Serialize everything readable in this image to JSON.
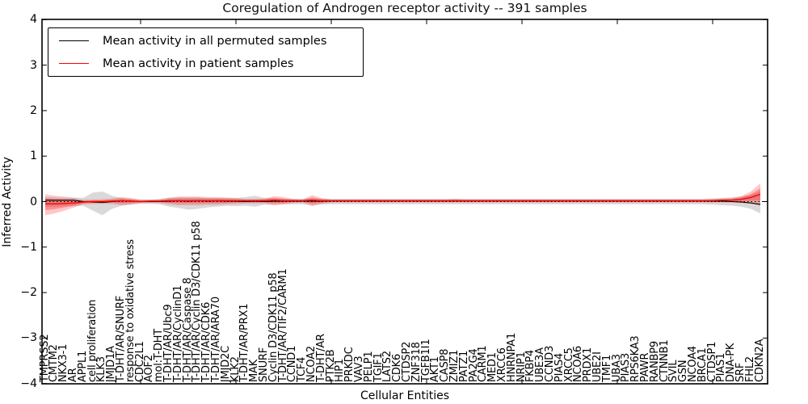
{
  "chart_data": {
    "type": "line",
    "title": "Coregulation of Androgen receptor activity -- 391 samples",
    "xlabel": "Cellular Entities",
    "ylabel": "Inferred Activity",
    "ylim": [
      -4,
      4
    ],
    "yticks": [
      4,
      3,
      2,
      1,
      0,
      -1,
      -2,
      -3,
      -4
    ],
    "xtick_positions": [
      10,
      20,
      30,
      40,
      50,
      60,
      70
    ],
    "grid": false,
    "legend_position": "upper left",
    "zero_line": {
      "value": 0,
      "style": "dotted",
      "color": "#000000"
    },
    "categories": [
      "TMPRSS2",
      "CMTM2",
      "NKX3-1",
      "AR",
      "APPL1",
      "cell proliferation",
      "KLK3",
      "JMJD1A",
      "T-DHT/AR/SNURF",
      "response to oxidative stress",
      "CDC2L1",
      "AOF2",
      "mol:T-DHT",
      "T-DHT/AR/Ubc9",
      "T-DHT/AR/CyclinD1",
      "T-DHT/AR/Caspase 8",
      "T-DHT/AR/Cyclin D3/CDK11 p58",
      "T-DHT/AR/CDK6",
      "T-DHT/AR/ARA70",
      "JMJD2C",
      "KLK2",
      "T-DHT/AR/PRX1",
      "MAK",
      "SNURF",
      "Cyclin D3/CDK11 p58",
      "T-DHT/AR/TIF2/CARM1",
      "CCND1",
      "TCF4",
      "NCOA2",
      "T-DHT/AR",
      "PTK2B",
      "HIP1",
      "PRKDC",
      "VAV3",
      "PELP1",
      "TGIF1",
      "LATS2",
      "CDK6",
      "CTDSP2",
      "ZNF318",
      "TGFB1I1",
      "AKT1",
      "CASP8",
      "ZMIZ1",
      "PATZ1",
      "PA2G4",
      "CARM1",
      "MED1",
      "XRCC6",
      "HNRNPA1",
      "NRIP1",
      "FKBP4",
      "UBE3A",
      "CCND3",
      "PIAS4",
      "XRCC5",
      "NCOA6",
      "PRDX1",
      "UBE2I",
      "TMF1",
      "UBA3",
      "PIAS3",
      "RPS6KA3",
      "PAWR",
      "RANBP9",
      "CTNNB1",
      "SVIL",
      "GSN",
      "NCOA4",
      "BRCA1",
      "CTDSP1",
      "PIAS1",
      "DNA-PK",
      "SRF",
      "FHL2",
      "CDKN2A"
    ],
    "series": [
      {
        "name": "Mean activity in all permuted samples",
        "color": "#000000",
        "style": "solid",
        "values": [
          0.03,
          0.03,
          0.03,
          0.03,
          0.0,
          -0.01,
          -0.02,
          0.0,
          0.02,
          0.01,
          0.0,
          0.0,
          0.0,
          0.01,
          0.02,
          0.01,
          0.02,
          0.01,
          0.02,
          0.01,
          0.01,
          0.0,
          0.01,
          0.0,
          0.01,
          0.01,
          0.01,
          0.01,
          0.01,
          0.01,
          0.015,
          0.015,
          0.015,
          0.015,
          0.015,
          0.015,
          0.015,
          0.015,
          0.015,
          0.015,
          0.015,
          0.015,
          0.015,
          0.015,
          0.015,
          0.015,
          0.015,
          0.015,
          0.015,
          0.015,
          0.015,
          0.015,
          0.015,
          0.015,
          0.015,
          0.015,
          0.015,
          0.015,
          0.015,
          0.015,
          0.015,
          0.015,
          0.015,
          0.015,
          0.015,
          0.015,
          0.015,
          0.015,
          0.015,
          0.015,
          0.01,
          0.01,
          0.0,
          -0.01,
          -0.03,
          -0.06
        ]
      },
      {
        "name": "Mean activity in patient samples",
        "color": "#ff0000",
        "style": "solid",
        "values": [
          -0.05,
          -0.05,
          -0.04,
          -0.03,
          -0.01,
          0.0,
          0.0,
          0.01,
          0.02,
          0.01,
          0.0,
          0.01,
          0.01,
          0.02,
          0.02,
          0.02,
          0.02,
          0.02,
          0.02,
          0.02,
          0.02,
          0.02,
          0.02,
          0.02,
          0.03,
          0.02,
          0.02,
          0.02,
          0.03,
          0.02,
          0.02,
          0.02,
          0.02,
          0.02,
          0.02,
          0.02,
          0.02,
          0.02,
          0.02,
          0.02,
          0.02,
          0.02,
          0.02,
          0.02,
          0.02,
          0.02,
          0.02,
          0.02,
          0.02,
          0.02,
          0.02,
          0.02,
          0.02,
          0.02,
          0.02,
          0.02,
          0.02,
          0.02,
          0.02,
          0.02,
          0.02,
          0.02,
          0.02,
          0.02,
          0.02,
          0.02,
          0.02,
          0.02,
          0.02,
          0.02,
          0.02,
          0.03,
          0.03,
          0.05,
          0.09,
          0.16
        ]
      }
    ],
    "bands": [
      {
        "name": "permuted-samples-range",
        "color": "#000000",
        "opacity": 0.15,
        "upper": [
          0.1,
          0.09,
          0.08,
          0.09,
          0.08,
          0.2,
          0.22,
          0.13,
          0.08,
          0.06,
          0.05,
          0.05,
          0.06,
          0.08,
          0.09,
          0.09,
          0.09,
          0.08,
          0.08,
          0.08,
          0.08,
          0.1,
          0.13,
          0.08,
          0.07,
          0.06,
          0.06,
          0.06,
          0.07,
          0.06,
          0.06,
          0.06,
          0.06,
          0.06,
          0.06,
          0.06,
          0.06,
          0.06,
          0.06,
          0.06,
          0.06,
          0.06,
          0.06,
          0.06,
          0.06,
          0.06,
          0.06,
          0.06,
          0.06,
          0.06,
          0.06,
          0.06,
          0.06,
          0.06,
          0.06,
          0.06,
          0.06,
          0.06,
          0.06,
          0.06,
          0.06,
          0.06,
          0.06,
          0.06,
          0.06,
          0.06,
          0.06,
          0.06,
          0.06,
          0.06,
          0.07,
          0.08,
          0.09,
          0.11,
          0.15,
          0.23
        ],
        "lower": [
          -0.12,
          -0.11,
          -0.1,
          -0.1,
          -0.09,
          -0.2,
          -0.3,
          -0.16,
          -0.09,
          -0.07,
          -0.05,
          -0.05,
          -0.06,
          -0.11,
          -0.14,
          -0.18,
          -0.16,
          -0.13,
          -0.11,
          -0.09,
          -0.1,
          -0.09,
          -0.11,
          -0.07,
          -0.07,
          -0.06,
          -0.06,
          -0.06,
          -0.08,
          -0.06,
          -0.06,
          -0.06,
          -0.06,
          -0.06,
          -0.06,
          -0.06,
          -0.06,
          -0.06,
          -0.06,
          -0.06,
          -0.06,
          -0.06,
          -0.06,
          -0.06,
          -0.06,
          -0.06,
          -0.06,
          -0.06,
          -0.06,
          -0.06,
          -0.06,
          -0.06,
          -0.06,
          -0.06,
          -0.06,
          -0.06,
          -0.06,
          -0.06,
          -0.06,
          -0.06,
          -0.06,
          -0.06,
          -0.06,
          -0.06,
          -0.06,
          -0.06,
          -0.06,
          -0.06,
          -0.06,
          -0.06,
          -0.07,
          -0.08,
          -0.09,
          -0.11,
          -0.16,
          -0.26
        ]
      },
      {
        "name": "patient-samples-range-outer",
        "color": "#ff0000",
        "opacity": 0.22,
        "upper": [
          0.16,
          0.13,
          0.11,
          0.08,
          0.04,
          0.05,
          0.05,
          0.07,
          0.1,
          0.08,
          0.04,
          0.04,
          0.05,
          0.09,
          0.11,
          0.11,
          0.11,
          0.1,
          0.1,
          0.09,
          0.08,
          0.06,
          0.06,
          0.07,
          0.12,
          0.1,
          0.06,
          0.05,
          0.14,
          0.08,
          0.05,
          0.05,
          0.05,
          0.05,
          0.05,
          0.05,
          0.05,
          0.05,
          0.05,
          0.05,
          0.05,
          0.05,
          0.05,
          0.06,
          0.05,
          0.05,
          0.05,
          0.05,
          0.05,
          0.05,
          0.05,
          0.05,
          0.05,
          0.05,
          0.05,
          0.05,
          0.05,
          0.05,
          0.05,
          0.05,
          0.05,
          0.05,
          0.05,
          0.05,
          0.05,
          0.05,
          0.05,
          0.05,
          0.05,
          0.05,
          0.06,
          0.07,
          0.08,
          0.12,
          0.22,
          0.4
        ],
        "lower": [
          -0.3,
          -0.26,
          -0.2,
          -0.13,
          -0.06,
          -0.05,
          -0.05,
          -0.05,
          -0.08,
          -0.06,
          -0.03,
          -0.03,
          -0.03,
          -0.06,
          -0.08,
          -0.08,
          -0.08,
          -0.07,
          -0.07,
          -0.06,
          -0.05,
          -0.04,
          -0.04,
          -0.04,
          -0.08,
          -0.06,
          -0.03,
          -0.02,
          -0.1,
          -0.05,
          -0.02,
          -0.02,
          -0.02,
          -0.02,
          -0.02,
          -0.02,
          -0.02,
          -0.02,
          -0.02,
          -0.02,
          -0.02,
          -0.02,
          -0.02,
          -0.02,
          -0.02,
          -0.02,
          -0.02,
          -0.02,
          -0.02,
          -0.02,
          -0.02,
          -0.02,
          -0.02,
          -0.02,
          -0.02,
          -0.02,
          -0.02,
          -0.02,
          -0.02,
          -0.02,
          -0.02,
          -0.02,
          -0.02,
          -0.02,
          -0.02,
          -0.02,
          -0.02,
          -0.02,
          -0.02,
          -0.02,
          -0.02,
          -0.02,
          -0.02,
          -0.03,
          -0.04,
          -0.09
        ]
      },
      {
        "name": "patient-samples-range-inner",
        "color": "#ff0000",
        "opacity": 0.28,
        "derived_scale": 0.55
      }
    ]
  }
}
